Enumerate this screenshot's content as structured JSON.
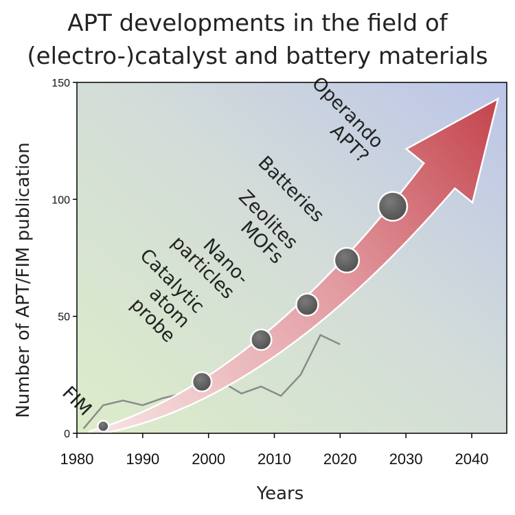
{
  "title_lines": [
    "APT developments in the field of",
    "(electro-)catalyst and battery materials"
  ],
  "colors": {
    "arrow_start": "#f6dede",
    "arrow_end": "#c7474f",
    "dot": "#5c5c5c",
    "line": "#8a8a8a",
    "bg_green": "#d9ebc7",
    "bg_blue": "#bfc6e6"
  },
  "chart_data": {
    "type": "line",
    "title": "APT developments in the field of (electro-)catalyst and battery materials",
    "xlabel": "Years",
    "ylabel": "Number of APT/FIM publication",
    "xlim": [
      1978,
      2045
    ],
    "ylim": [
      0,
      150
    ],
    "x_ticks": [
      "1980",
      "1990",
      "2000",
      "2010",
      "2020",
      "2030",
      "2040"
    ],
    "y_ticks": [
      "0",
      "50",
      "100",
      "150"
    ],
    "grid": false,
    "series": [
      {
        "x": [
          1981,
          1984,
          1987,
          1990,
          1993,
          1996,
          2000,
          2002,
          2005,
          2008,
          2011,
          2014,
          2017,
          2020
        ],
        "values": [
          2,
          12,
          14,
          12,
          15,
          17,
          20,
          22,
          17,
          20,
          16,
          25,
          42,
          38
        ]
      }
    ],
    "trend_arrow": {
      "start": [
        1982,
        0
      ],
      "end": [
        2044,
        143
      ]
    },
    "milestones": [
      {
        "label": [
          "FIM"
        ],
        "x": 1984,
        "y": 3,
        "r": 8
      },
      {
        "label": [
          "Catalytic",
          "atom",
          "probe"
        ],
        "x": 1999,
        "y": 22,
        "r": 14
      },
      {
        "label": [
          "Nano-",
          "particles"
        ],
        "x": 2008,
        "y": 40,
        "r": 15
      },
      {
        "label": [
          "Zeolites",
          "MOFs"
        ],
        "x": 2015,
        "y": 55,
        "r": 16
      },
      {
        "label": [
          "Batteries"
        ],
        "x": 2021,
        "y": 74,
        "r": 18
      },
      {
        "label": [
          "Operando",
          "APT?"
        ],
        "x": 2028,
        "y": 97,
        "r": 21
      }
    ]
  }
}
